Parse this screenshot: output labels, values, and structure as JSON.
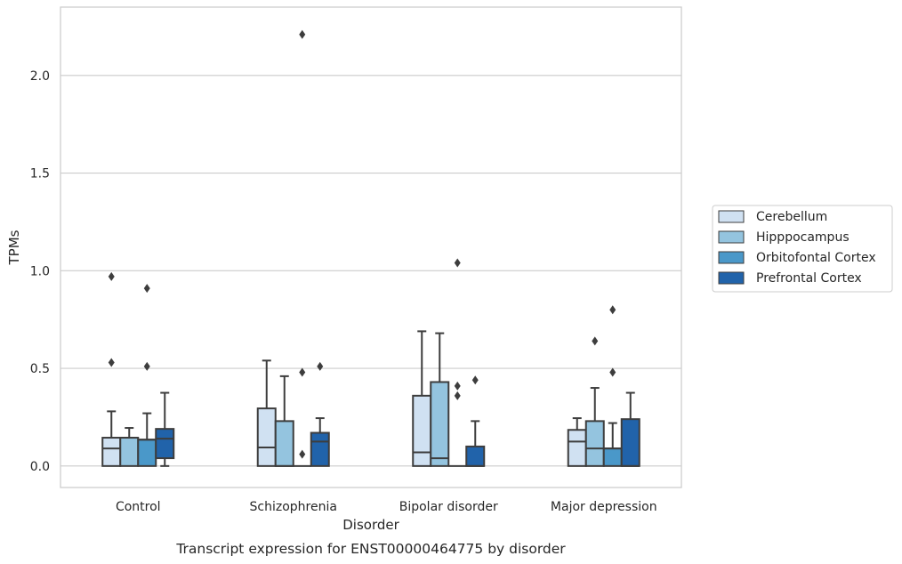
{
  "chart_data": {
    "type": "box",
    "title": "",
    "caption": "Transcript expression for ENST00000464775 by disorder",
    "xlabel": "Disorder",
    "ylabel": "TPMs",
    "ylim": [
      -0.11,
      2.35
    ],
    "yticks": [
      0.0,
      0.5,
      1.0,
      1.5,
      2.0
    ],
    "ytick_labels": [
      "0.0",
      "0.5",
      "1.0",
      "1.5",
      "2.0"
    ],
    "grid": "horizontal",
    "legend_position": "right",
    "categories": [
      "Control",
      "Schizophrenia",
      "Bipolar disorder",
      "Major depression"
    ],
    "series": [
      {
        "name": "Cerebellum",
        "color": "#d0e1f2",
        "boxes": [
          {
            "min": 0.0,
            "q1": 0.0,
            "median": 0.09,
            "q3": 0.145,
            "max": 0.28,
            "outliers": [
              0.53,
              0.97
            ]
          },
          {
            "min": 0.0,
            "q1": 0.0,
            "median": 0.095,
            "q3": 0.295,
            "max": 0.54,
            "outliers": []
          },
          {
            "min": 0.0,
            "q1": 0.0,
            "median": 0.07,
            "q3": 0.36,
            "max": 0.69,
            "outliers": []
          },
          {
            "min": 0.0,
            "q1": 0.0,
            "median": 0.125,
            "q3": 0.185,
            "max": 0.245,
            "outliers": []
          }
        ]
      },
      {
        "name": "Hipppocampus",
        "color": "#94c4df",
        "boxes": [
          {
            "min": 0.0,
            "q1": 0.0,
            "median": 0.145,
            "q3": 0.145,
            "max": 0.195,
            "outliers": []
          },
          {
            "min": 0.0,
            "q1": 0.0,
            "median": 0.0,
            "q3": 0.23,
            "max": 0.46,
            "outliers": []
          },
          {
            "min": 0.0,
            "q1": 0.0,
            "median": 0.04,
            "q3": 0.43,
            "max": 0.68,
            "outliers": []
          },
          {
            "min": 0.0,
            "q1": 0.0,
            "median": 0.09,
            "q3": 0.23,
            "max": 0.4,
            "outliers": [
              0.64
            ]
          }
        ]
      },
      {
        "name": "Orbitofontal Cortex",
        "color": "#4a98c9",
        "boxes": [
          {
            "min": 0.0,
            "q1": 0.0,
            "median": 0.135,
            "q3": 0.135,
            "max": 0.27,
            "outliers": [
              0.51,
              0.91
            ]
          },
          {
            "min": 0.0,
            "q1": 0.0,
            "median": 0.0,
            "q3": 0.0,
            "max": 0.0,
            "outliers": [
              0.06,
              0.48,
              2.21
            ]
          },
          {
            "min": 0.0,
            "q1": 0.0,
            "median": 0.0,
            "q3": 0.0,
            "max": 0.0,
            "outliers": [
              0.36,
              0.41,
              1.04
            ]
          },
          {
            "min": 0.0,
            "q1": 0.0,
            "median": 0.09,
            "q3": 0.09,
            "max": 0.22,
            "outliers": [
              0.48,
              0.8
            ]
          }
        ]
      },
      {
        "name": "Prefrontal Cortex",
        "color": "#2163aa",
        "boxes": [
          {
            "min": 0.0,
            "q1": 0.04,
            "median": 0.14,
            "q3": 0.19,
            "max": 0.375,
            "outliers": []
          },
          {
            "min": 0.0,
            "q1": 0.0,
            "median": 0.125,
            "q3": 0.17,
            "max": 0.245,
            "outliers": [
              0.51
            ]
          },
          {
            "min": 0.0,
            "q1": 0.0,
            "median": 0.0,
            "q3": 0.1,
            "max": 0.23,
            "outliers": [
              0.44
            ]
          },
          {
            "min": 0.0,
            "q1": 0.0,
            "median": 0.0,
            "q3": 0.24,
            "max": 0.375,
            "outliers": []
          }
        ]
      }
    ]
  }
}
